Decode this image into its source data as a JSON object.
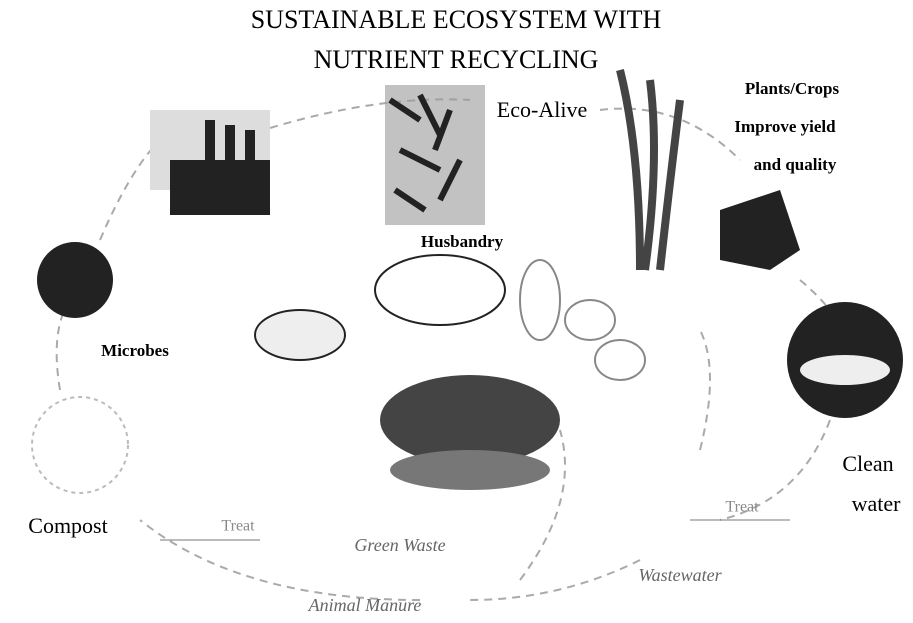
{
  "title": [
    "SUSTAINABLE ECOSYSTEM WITH",
    "NUTRIENT RECYCLING"
  ],
  "nodes": [
    {
      "label": "Eco-Alive"
    },
    {
      "label": [
        "Plants/Crops",
        "Improve yield",
        "and quality"
      ]
    },
    {
      "label": "Husbandry"
    },
    {
      "label": "Microbes"
    },
    {
      "label": "Compost"
    },
    {
      "label": [
        "Clean",
        "water"
      ]
    }
  ],
  "flows": [
    {
      "label": "Green Waste",
      "treat": "Treat"
    },
    {
      "label": "Wastewater",
      "treat": "Treat"
    },
    {
      "label": "Animal Manure"
    }
  ]
}
